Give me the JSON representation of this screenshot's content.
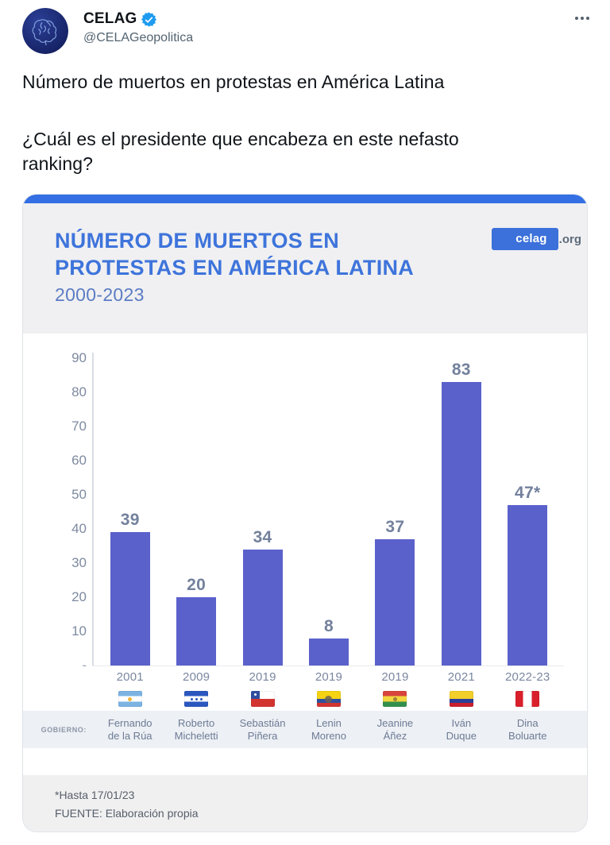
{
  "tweet": {
    "author_name": "CELAG",
    "author_handle": "@CELAGeopolitica",
    "verified": true,
    "text_para1": "Número de muertos en protestas en América Latina",
    "text_para2_line1": "¿Cuál es el presidente que encabeza en este nefasto",
    "text_para2_line2": "ranking?"
  },
  "card": {
    "title_line1": "NÚMERO DE MUERTOS EN",
    "title_line2": "PROTESTAS EN AMÉRICA LATINA",
    "subtitle": "2000-2023",
    "brand_highlight": "celag",
    "brand_suffix": ".org",
    "gobierno_label": "GOBIERNO:",
    "footnote": "*Hasta 17/01/23",
    "source": "FUENTE:  Elaboración propia"
  },
  "chart_data": {
    "type": "bar",
    "title": "NÚMERO DE MUERTOS EN PROTESTAS EN AMÉRICA LATINA",
    "subtitle": "2000-2023",
    "ylim": [
      0,
      90
    ],
    "yticks": [
      90,
      80,
      70,
      60,
      50,
      40,
      30,
      20,
      10
    ],
    "zero_tick_label": "-",
    "grid": false,
    "legend": false,
    "bar_color": "#5b61cb",
    "categories": [
      "2001",
      "2009",
      "2019",
      "2019",
      "2019",
      "2021",
      "2022-23"
    ],
    "values": [
      39,
      20,
      34,
      8,
      37,
      83,
      47
    ],
    "bars": [
      {
        "year": "2001",
        "value": 39,
        "label": "39",
        "president": "Fernando de la Rúa",
        "president_lines": [
          "Fernando",
          "de la Rúa"
        ],
        "country": "argentina"
      },
      {
        "year": "2009",
        "value": 20,
        "label": "20",
        "president": "Roberto Micheletti",
        "president_lines": [
          "Roberto",
          "Micheletti"
        ],
        "country": "honduras"
      },
      {
        "year": "2019",
        "value": 34,
        "label": "34",
        "president": "Sebastián Piñera",
        "president_lines": [
          "Sebastián",
          "Piñera"
        ],
        "country": "chile"
      },
      {
        "year": "2019",
        "value": 8,
        "label": "8",
        "president": "Lenin Moreno",
        "president_lines": [
          "Lenin",
          "Moreno"
        ],
        "country": "ecuador"
      },
      {
        "year": "2019",
        "value": 37,
        "label": "37",
        "president": "Jeanine Áñez",
        "president_lines": [
          "Jeanine",
          "Áñez"
        ],
        "country": "bolivia"
      },
      {
        "year": "2021",
        "value": 83,
        "label": "83",
        "president": "Iván Duque",
        "president_lines": [
          "Iván",
          "Duque"
        ],
        "country": "colombia"
      },
      {
        "year": "2022-23",
        "value": 47,
        "label": "47*",
        "president": "Dina Boluarte",
        "president_lines": [
          "Dina",
          "Boluarte"
        ],
        "country": "peru"
      }
    ],
    "footnote": "*Hasta 17/01/23",
    "source": "FUENTE: Elaboración propia"
  },
  "colors": {
    "accent_blue": "#3e74db",
    "top_band_blue": "#3470e4",
    "brand_badge_blue": "#3c70da",
    "bar_blue": "#5b61cb",
    "verified_blue": "#1d9bf0",
    "label_gray_blue": "#7b87a0",
    "text_dark": "#0f1419",
    "handle_gray": "#536471"
  }
}
